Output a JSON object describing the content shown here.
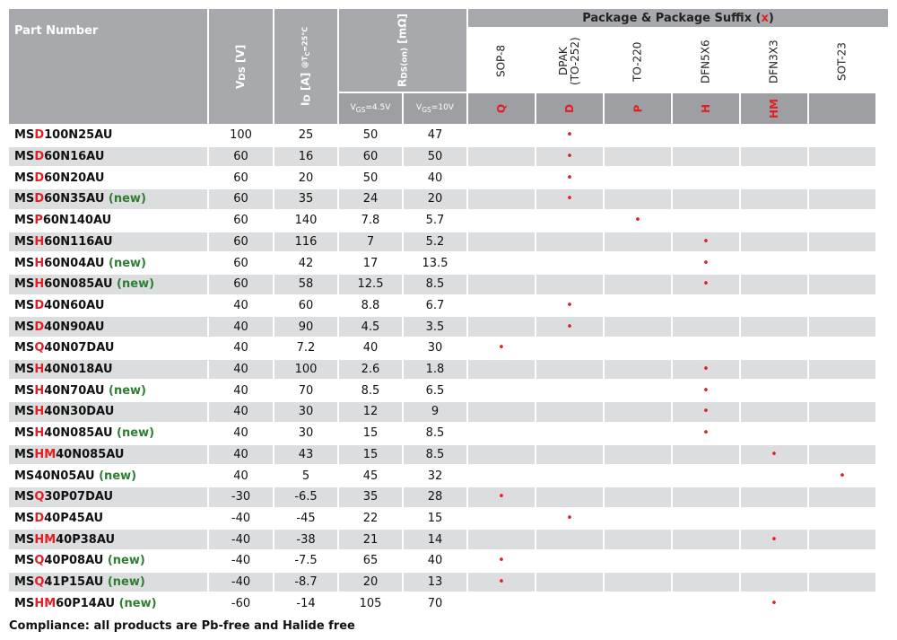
{
  "header": {
    "part_number": "Part Number",
    "vds_main": "V",
    "vds_sub": "DS",
    "vds_unit": " [V]",
    "id_main": "I",
    "id_sub": "D",
    "id_unit": " [A] ",
    "id_cond": "@T",
    "id_cond_sub": "C",
    "id_cond_val": "=25°C",
    "rds_main": "R",
    "rds_sub": "DS(on)",
    "rds_unit": " [mΩ]",
    "vgs45_a": "V",
    "vgs45_sub": "GS",
    "vgs45_b": "=4.5V",
    "vgs10_a": "V",
    "vgs10_sub": "GS",
    "vgs10_b": "=10V",
    "package_title": "Package & Package Suffix (",
    "package_x": "x",
    "package_close": ")"
  },
  "packages": [
    {
      "name": "SOP-8",
      "suffix": "Q"
    },
    {
      "name": "DPAK\n(TO-252)",
      "suffix": "D"
    },
    {
      "name": "TO-220",
      "suffix": "P"
    },
    {
      "name": "DFN5X6",
      "suffix": "H"
    },
    {
      "name": "DFN3X3",
      "suffix": "HM"
    },
    {
      "name": "SOT-23",
      "suffix": ""
    }
  ],
  "rows": [
    {
      "pre": "MS",
      "code": "D",
      "post": "100N25AU",
      "new": "",
      "vds": "100",
      "id": "25",
      "r45": "50",
      "r10": "47",
      "pkg": 1
    },
    {
      "pre": "MS",
      "code": "D",
      "post": "60N16AU",
      "new": "",
      "vds": "60",
      "id": "16",
      "r45": "60",
      "r10": "50",
      "pkg": 1
    },
    {
      "pre": "MS",
      "code": "D",
      "post": "60N20AU",
      "new": "",
      "vds": "60",
      "id": "20",
      "r45": "50",
      "r10": "40",
      "pkg": 1
    },
    {
      "pre": "MS",
      "code": "D",
      "post": "60N35AU",
      "new": " (new)",
      "vds": "60",
      "id": "35",
      "r45": "24",
      "r10": "20",
      "pkg": 1
    },
    {
      "pre": "MS",
      "code": "P",
      "post": "60N140AU",
      "new": "",
      "vds": "60",
      "id": "140",
      "r45": "7.8",
      "r10": "5.7",
      "pkg": 2
    },
    {
      "pre": "MS",
      "code": "H",
      "post": "60N116AU",
      "new": "",
      "vds": "60",
      "id": "116",
      "r45": "7",
      "r10": "5.2",
      "pkg": 3
    },
    {
      "pre": "MS",
      "code": "H",
      "post": "60N04AU",
      "new": " (new)",
      "vds": "60",
      "id": "42",
      "r45": "17",
      "r10": "13.5",
      "pkg": 3
    },
    {
      "pre": "MS",
      "code": "H",
      "post": "60N085AU",
      "new": " (new)",
      "vds": "60",
      "id": "58",
      "r45": "12.5",
      "r10": "8.5",
      "pkg": 3
    },
    {
      "pre": "MS",
      "code": "D",
      "post": "40N60AU",
      "new": "",
      "vds": "40",
      "id": "60",
      "r45": "8.8",
      "r10": "6.7",
      "pkg": 1
    },
    {
      "pre": "MS",
      "code": "D",
      "post": "40N90AU",
      "new": "",
      "vds": "40",
      "id": "90",
      "r45": "4.5",
      "r10": "3.5",
      "pkg": 1
    },
    {
      "pre": "MS",
      "code": "Q",
      "post": "40N07DAU",
      "new": "",
      "vds": "40",
      "id": "7.2",
      "r45": "40",
      "r10": "30",
      "pkg": 0
    },
    {
      "pre": "MS",
      "code": "H",
      "post": "40N018AU",
      "new": "",
      "vds": "40",
      "id": "100",
      "r45": "2.6",
      "r10": "1.8",
      "pkg": 3
    },
    {
      "pre": "MS",
      "code": "H",
      "post": "40N70AU",
      "new": " (new)",
      "vds": "40",
      "id": "70",
      "r45": "8.5",
      "r10": "6.5",
      "pkg": 3
    },
    {
      "pre": "MS",
      "code": "H",
      "post": "40N30DAU",
      "new": "",
      "vds": "40",
      "id": "30",
      "r45": "12",
      "r10": "9",
      "pkg": 3
    },
    {
      "pre": "MS",
      "code": "H",
      "post": "40N085AU",
      "new": " (new)",
      "vds": "40",
      "id": "30",
      "r45": "15",
      "r10": "8.5",
      "pkg": 3
    },
    {
      "pre": "MS",
      "code": "HM",
      "post": "40N085AU",
      "new": "",
      "vds": "40",
      "id": "43",
      "r45": "15",
      "r10": "8.5",
      "pkg": 4
    },
    {
      "pre": "MS",
      "code": "",
      "post": "40N05AU",
      "new": " (new)",
      "vds": "40",
      "id": "5",
      "r45": "45",
      "r10": "32",
      "pkg": 5
    },
    {
      "pre": "MS",
      "code": "Q",
      "post": "30P07DAU",
      "new": "",
      "vds": "-30",
      "id": "-6.5",
      "r45": "35",
      "r10": "28",
      "pkg": 0
    },
    {
      "pre": "MS",
      "code": "D",
      "post": "40P45AU",
      "new": "",
      "vds": "-40",
      "id": "-45",
      "r45": "22",
      "r10": "15",
      "pkg": 1
    },
    {
      "pre": "MS",
      "code": "HM",
      "post": "40P38AU",
      "new": "",
      "vds": "-40",
      "id": "-38",
      "r45": "21",
      "r10": "14",
      "pkg": 4
    },
    {
      "pre": "MS",
      "code": "Q",
      "post": "40P08AU",
      "new": " (new)",
      "vds": "-40",
      "id": "-7.5",
      "r45": "65",
      "r10": "40",
      "pkg": 0
    },
    {
      "pre": "MS",
      "code": "Q",
      "post": "41P15AU",
      "new": " (new)",
      "vds": "-40",
      "id": "-8.7",
      "r45": "20",
      "r10": "13",
      "pkg": 0
    },
    {
      "pre": "MS",
      "code": "HM",
      "post": "60P14AU",
      "new": " (new)",
      "vds": "-60",
      "id": "-14",
      "r45": "105",
      "r10": "70",
      "pkg": 4
    }
  ],
  "dot_symbol": "•",
  "footer": "Compliance: all products are Pb-free and Halide free",
  "colors": {
    "header": "#a7a9ac",
    "row_alt": "#dcdddf",
    "suffix_red": "#e31e24",
    "new_green": "#2e7d32"
  }
}
